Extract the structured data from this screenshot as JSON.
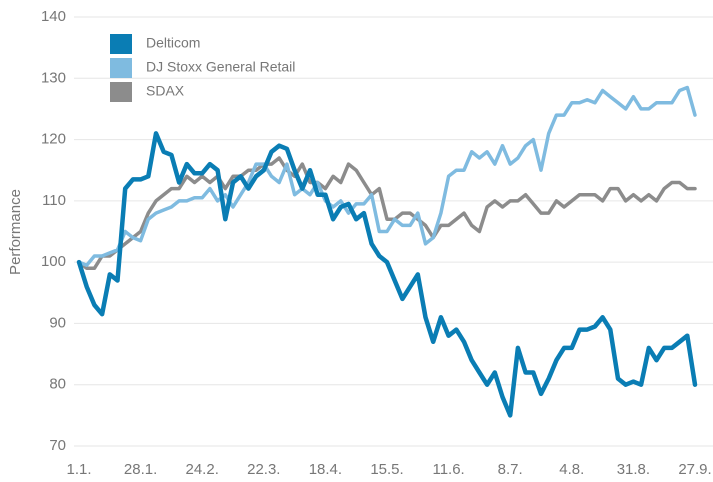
{
  "chart_data": {
    "type": "line",
    "y_label": "Performance",
    "categories": [
      "1.1.",
      null,
      null,
      null,
      null,
      null,
      null,
      null,
      "28.1.",
      null,
      null,
      null,
      null,
      null,
      null,
      null,
      "24.2.",
      null,
      null,
      null,
      null,
      null,
      null,
      null,
      "22.3.",
      null,
      null,
      null,
      null,
      null,
      null,
      null,
      "18.4.",
      null,
      null,
      null,
      null,
      null,
      null,
      null,
      "15.5.",
      null,
      null,
      null,
      null,
      null,
      null,
      null,
      "11.6.",
      null,
      null,
      null,
      null,
      null,
      null,
      null,
      "8.7.",
      null,
      null,
      null,
      null,
      null,
      null,
      null,
      "4.8.",
      null,
      null,
      null,
      null,
      null,
      null,
      null,
      "31.8.",
      null,
      null,
      null,
      null,
      null,
      null,
      null,
      "27.9."
    ],
    "series": [
      {
        "name": "Delticom",
        "color": "#0a7db4",
        "values": [
          100,
          96,
          93,
          91.5,
          98,
          97,
          112,
          113.5,
          113.5,
          114,
          121,
          118,
          117.5,
          113,
          116,
          114.5,
          114.5,
          116,
          115,
          107,
          113,
          114,
          112,
          114,
          115,
          118,
          119,
          118.5,
          115,
          112,
          115,
          111,
          111,
          107,
          109,
          109.5,
          107,
          108,
          103,
          101,
          100,
          97,
          94,
          96,
          98,
          91,
          87,
          91,
          88,
          89,
          87,
          84,
          82,
          80,
          82,
          78,
          75,
          86,
          82,
          82,
          78.5,
          81,
          84,
          86,
          86,
          89,
          89,
          89.5,
          91,
          89,
          81,
          80,
          80.5,
          80,
          86,
          84,
          86,
          86,
          87,
          88,
          80
        ]
      },
      {
        "name": "DJ Stoxx General Retail",
        "color": "#7fbbe0",
        "values": [
          100,
          99.5,
          101,
          101,
          101.5,
          102,
          105,
          104,
          103.5,
          107,
          108,
          108.5,
          109,
          110,
          110,
          110.5,
          110.5,
          112,
          110,
          111,
          109,
          111,
          113,
          116,
          116,
          114,
          113,
          116,
          111,
          112,
          111,
          113,
          110,
          109,
          110,
          108,
          109.5,
          109.5,
          111,
          105,
          105,
          107,
          106,
          106,
          108,
          103,
          104,
          108,
          114,
          115,
          115,
          118,
          117,
          118,
          116,
          119,
          116,
          117,
          119,
          120,
          115,
          121,
          124,
          124,
          126,
          126,
          126.5,
          126,
          128,
          127,
          126,
          125,
          127,
          125,
          125,
          126,
          126,
          126,
          128,
          128.5,
          124
        ]
      },
      {
        "name": "SDAX",
        "color": "#8c8c8c",
        "values": [
          100,
          99,
          99,
          101,
          101,
          102,
          103,
          104,
          105,
          108,
          110,
          111,
          112,
          112,
          114,
          113,
          114,
          113,
          114,
          112,
          114,
          114,
          115,
          115,
          116,
          116,
          117,
          115,
          114,
          116,
          113,
          113,
          112,
          114,
          113,
          116,
          115,
          113,
          111,
          112,
          107,
          107,
          108,
          108,
          107,
          106,
          104,
          106,
          106,
          107,
          108,
          106,
          105,
          109,
          110,
          109,
          110,
          110,
          111,
          109.5,
          108,
          108,
          110,
          109,
          110,
          111,
          111,
          111,
          110,
          112,
          112,
          110,
          111,
          110,
          111,
          110,
          112,
          113,
          113,
          112,
          112
        ]
      }
    ],
    "ylim": [
      70,
      140
    ],
    "yticks": [
      70,
      80,
      90,
      100,
      110,
      120,
      130,
      140
    ],
    "grid": true,
    "legend": "top-left"
  }
}
